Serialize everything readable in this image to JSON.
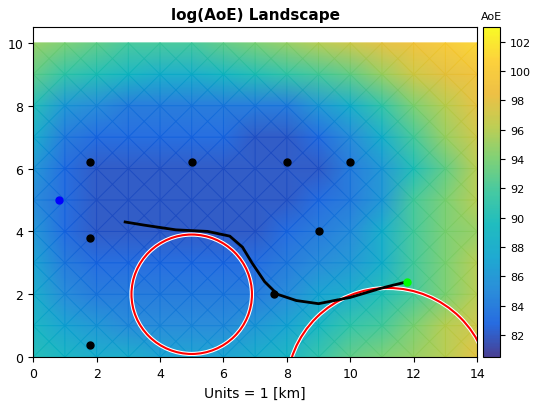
{
  "chart_data": {
    "type": "heatmap",
    "title": "log(AoE) Landscape",
    "x_label": "Units = 1 [km]",
    "xlim": [
      0,
      14
    ],
    "ylim": [
      0,
      10.5
    ],
    "xticks": [
      0,
      2,
      4,
      6,
      8,
      10,
      12,
      14
    ],
    "yticks": [
      0,
      2,
      4,
      6,
      8,
      10
    ],
    "x": [
      0,
      1,
      2,
      3,
      4,
      5,
      6,
      7,
      8,
      9,
      10,
      11,
      12,
      13,
      14
    ],
    "y": [
      0,
      1,
      2,
      3,
      4,
      5,
      6,
      7,
      8,
      9,
      10
    ],
    "cells": [
      [
        90,
        89,
        88,
        88,
        87,
        87,
        87,
        88,
        89,
        91,
        93,
        94,
        95,
        96,
        98
      ],
      [
        89,
        87,
        86,
        85,
        85,
        85,
        85,
        86,
        87,
        89,
        91,
        92,
        94,
        96,
        97
      ],
      [
        88,
        85,
        84,
        84,
        84,
        84,
        84,
        84,
        85,
        87,
        88,
        90,
        92,
        94,
        96
      ],
      [
        87,
        84,
        83,
        83,
        83,
        83,
        83,
        83,
        84,
        85,
        86,
        88,
        92,
        94,
        96
      ],
      [
        86,
        83,
        82,
        82,
        82,
        82,
        82,
        82,
        83,
        84,
        85,
        88,
        92,
        94,
        95
      ],
      [
        85,
        83,
        82,
        82,
        82,
        82,
        82,
        82,
        82,
        83,
        84,
        86,
        92,
        94,
        96
      ],
      [
        86,
        83,
        82,
        82,
        82,
        82,
        82,
        82,
        82,
        82,
        84,
        86,
        90,
        93,
        96
      ],
      [
        88,
        84,
        83,
        83,
        83,
        83,
        83,
        82,
        82,
        83,
        85,
        88,
        92,
        95,
        97
      ],
      [
        90,
        86,
        85,
        84,
        84,
        84,
        84,
        84,
        84,
        86,
        88,
        91,
        94,
        96,
        98
      ],
      [
        93,
        91,
        90,
        89,
        88,
        88,
        89,
        90,
        91,
        92,
        93,
        95,
        97,
        98,
        99
      ],
      [
        95,
        94,
        93,
        92,
        92,
        92,
        93,
        94,
        95,
        96,
        97,
        98,
        99,
        100,
        101
      ]
    ],
    "colorbar": {
      "title": "AoE",
      "range": [
        80.5,
        103
      ],
      "ticks": [
        82,
        84,
        86,
        88,
        90,
        92,
        94,
        96,
        98,
        100,
        102
      ]
    },
    "points": [
      {
        "x": 1.8,
        "y": 6.2,
        "color": "black"
      },
      {
        "x": 5.0,
        "y": 6.2,
        "color": "black"
      },
      {
        "x": 8.0,
        "y": 6.2,
        "color": "black"
      },
      {
        "x": 10.0,
        "y": 6.2,
        "color": "black"
      },
      {
        "x": 1.8,
        "y": 3.8,
        "color": "black"
      },
      {
        "x": 9.0,
        "y": 4.0,
        "color": "black"
      },
      {
        "x": 1.8,
        "y": 0.4,
        "color": "black"
      },
      {
        "x": 7.6,
        "y": 2.0,
        "color": "black"
      },
      {
        "x": 0.8,
        "y": 5.0,
        "color": "blue"
      },
      {
        "x": 11.8,
        "y": 2.4,
        "color": "#00ff00"
      }
    ],
    "path": {
      "color": "black",
      "x": [
        2.9,
        3.5,
        4.5,
        5.5,
        6.2,
        6.6,
        6.9,
        7.3,
        7.7,
        8.3,
        9.0,
        10.0,
        11.0,
        11.8
      ],
      "y": [
        4.3,
        4.2,
        4.05,
        4.0,
        3.85,
        3.5,
        3.0,
        2.4,
        2.0,
        1.8,
        1.7,
        1.9,
        2.2,
        2.4
      ]
    },
    "circles": [
      {
        "center": [
          5.0,
          2.0
        ],
        "radius": 1.9,
        "color": "red"
      },
      {
        "center": [
          11.2,
          -1.0
        ],
        "radius": 3.2,
        "color": "red"
      }
    ]
  }
}
